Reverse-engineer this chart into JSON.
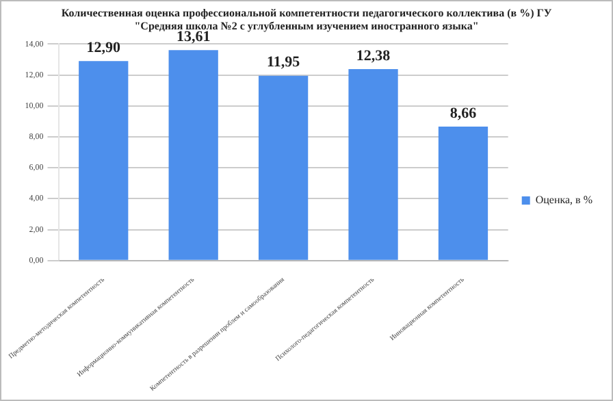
{
  "chart_data": {
    "type": "bar",
    "title": [
      "Количественная оценка профессиональной компетентности педагогического коллектива (в %) ГУ",
      "\"Средняя школа №2 с углубленным изучением иностранного языка\""
    ],
    "categories": [
      "Предметно-методическая компетентность",
      "Информационно-коммуникативная компетентность",
      "Компетентность в разрешении проблем и самообразования",
      "Психолого-педагогическая компетентность",
      "Инновационная компетентность"
    ],
    "series": [
      {
        "name": "Оценка, в %",
        "color": "#4d8fec",
        "values": [
          12.9,
          13.61,
          11.95,
          12.38,
          8.66
        ],
        "value_labels": [
          "12,90",
          "13,61",
          "11,95",
          "12,38",
          "8,66"
        ]
      }
    ],
    "ylim": [
      0,
      14
    ],
    "yticks": [
      {
        "value": 0,
        "label": "0,00"
      },
      {
        "value": 2,
        "label": "2,00"
      },
      {
        "value": 4,
        "label": "4,00"
      },
      {
        "value": 6,
        "label": "6,00"
      },
      {
        "value": 8,
        "label": "8,00"
      },
      {
        "value": 10,
        "label": "10,00"
      },
      {
        "value": 12,
        "label": "12,00"
      },
      {
        "value": 14,
        "label": "14,00"
      }
    ],
    "grid": "y",
    "legend": "right"
  }
}
